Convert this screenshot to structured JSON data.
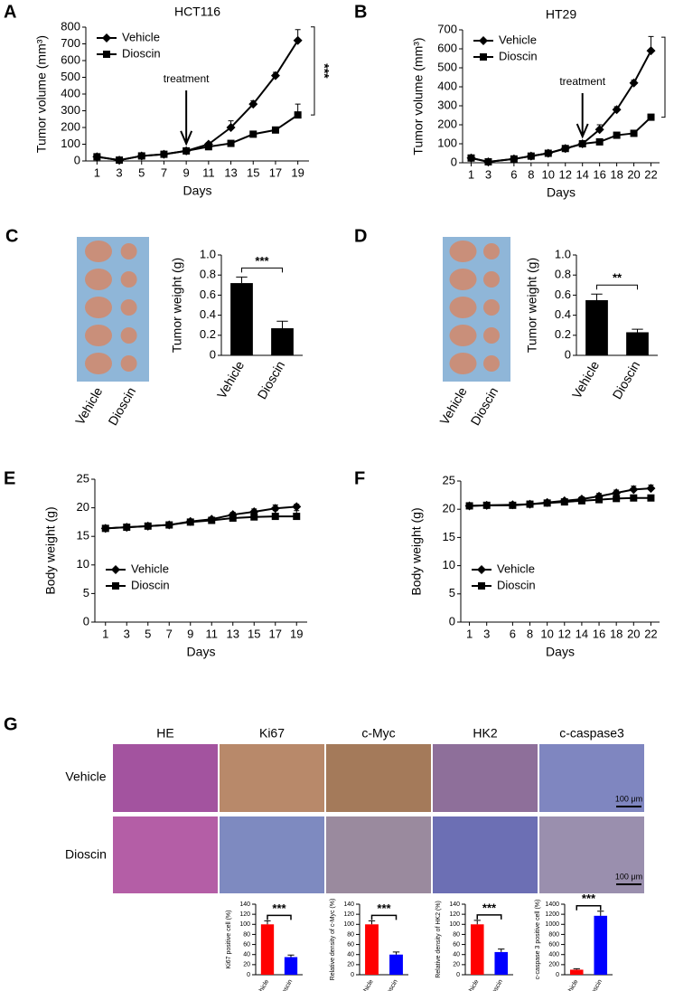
{
  "chart_data": [
    {
      "type": "line",
      "panel": "A",
      "title": "HCT116",
      "x": [
        1,
        3,
        5,
        7,
        9,
        11,
        13,
        15,
        17,
        19
      ],
      "xlim": [
        0,
        20
      ],
      "xticks": [
        1,
        3,
        5,
        7,
        9,
        11,
        13,
        15,
        17,
        19
      ],
      "ylim": [
        0,
        800
      ],
      "yticks": [
        0,
        100,
        200,
        300,
        400,
        500,
        600,
        700,
        800
      ],
      "xlabel": "Days",
      "ylabel": "Tumor volume (mm³)",
      "legend": "upper left",
      "series": [
        {
          "name": "Vehicle",
          "color": "#000000",
          "marker": "diamond",
          "values": [
            25,
            5,
            30,
            40,
            60,
            100,
            200,
            340,
            510,
            720
          ],
          "errors": [
            0,
            0,
            0,
            0,
            0,
            10,
            40,
            20,
            20,
            65
          ]
        },
        {
          "name": "Dioscin",
          "color": "#000000",
          "marker": "square",
          "values": [
            25,
            5,
            30,
            40,
            60,
            85,
            105,
            160,
            185,
            275
          ],
          "errors": [
            0,
            0,
            0,
            0,
            0,
            0,
            0,
            0,
            10,
            65
          ]
        }
      ],
      "annotation": {
        "text": "treatment",
        "x": 9
      },
      "significance": "***"
    },
    {
      "type": "line",
      "panel": "B",
      "title": "HT29",
      "x": [
        1,
        3,
        6,
        8,
        10,
        12,
        14,
        16,
        18,
        20,
        22
      ],
      "xlim": [
        0,
        23
      ],
      "xticks": [
        1,
        3,
        6,
        8,
        10,
        12,
        14,
        16,
        18,
        20,
        22
      ],
      "ylim": [
        0,
        700
      ],
      "yticks": [
        0,
        100,
        200,
        300,
        400,
        500,
        600,
        700
      ],
      "xlabel": "Days",
      "ylabel": "Tumor volume (mm³)",
      "legend": "upper left",
      "series": [
        {
          "name": "Vehicle",
          "color": "#000000",
          "marker": "diamond",
          "values": [
            25,
            5,
            20,
            35,
            50,
            75,
            100,
            175,
            280,
            420,
            590
          ],
          "errors": [
            0,
            0,
            0,
            0,
            0,
            0,
            0,
            25,
            15,
            15,
            75
          ]
        },
        {
          "name": "Dioscin",
          "color": "#000000",
          "marker": "square",
          "values": [
            25,
            5,
            20,
            35,
            50,
            75,
            100,
            110,
            145,
            155,
            240
          ],
          "errors": [
            0,
            0,
            0,
            0,
            0,
            0,
            0,
            0,
            0,
            0,
            10
          ]
        }
      ],
      "annotation": {
        "text": "treatment",
        "x": 14
      },
      "significance": "***"
    },
    {
      "type": "bar",
      "panel": "C",
      "categories": [
        "Vehicle",
        "Dioscin"
      ],
      "values": [
        0.72,
        0.27
      ],
      "errors": [
        0.06,
        0.07
      ],
      "color": "#000000",
      "ylim": [
        0,
        1
      ],
      "yticks": [
        0,
        0.2,
        0.4,
        0.6,
        0.8,
        {
          "value": 1,
          "label": "1.0"
        }
      ],
      "ylabel": "Tumor weight (g)",
      "significance": "***",
      "photo_labels": [
        "Vehicle",
        "Dioscin"
      ]
    },
    {
      "type": "bar",
      "panel": "D",
      "categories": [
        "Vehicle",
        "Dioscin"
      ],
      "values": [
        0.55,
        0.23
      ],
      "errors": [
        0.06,
        0.03
      ],
      "color": "#000000",
      "ylim": [
        0,
        1
      ],
      "yticks": [
        0,
        0.2,
        0.4,
        0.6,
        0.8,
        {
          "value": 1,
          "label": "1.0"
        }
      ],
      "ylabel": "Tumor weight (g)",
      "significance": "**",
      "photo_labels": [
        "Vehicle",
        "Dioscin"
      ]
    },
    {
      "type": "line",
      "panel": "E",
      "x": [
        1,
        3,
        5,
        7,
        9,
        11,
        13,
        15,
        17,
        19
      ],
      "xlim": [
        0,
        20
      ],
      "xticks": [
        1,
        3,
        5,
        7,
        9,
        11,
        13,
        15,
        17,
        19
      ],
      "ylim": [
        0,
        25
      ],
      "yticks": [
        0,
        5,
        10,
        15,
        20,
        25
      ],
      "xlabel": "Days",
      "ylabel": "Body weight (g)",
      "legend": "lower left",
      "series": [
        {
          "name": "Vehicle",
          "color": "#000000",
          "marker": "diamond",
          "values": [
            16.4,
            16.6,
            16.8,
            17.0,
            17.6,
            18.0,
            18.8,
            19.3,
            19.9,
            20.2
          ],
          "errors": [
            0,
            0,
            0,
            0,
            0.2,
            0.3,
            0.4,
            0.5,
            0.6,
            0.4
          ]
        },
        {
          "name": "Dioscin",
          "color": "#000000",
          "marker": "square",
          "values": [
            16.4,
            16.6,
            16.8,
            17.0,
            17.5,
            17.8,
            18.2,
            18.4,
            18.5,
            18.5
          ],
          "errors": [
            0,
            0,
            0,
            0,
            0.2,
            0.3,
            0.4,
            0.6,
            1.0,
            1.0
          ]
        }
      ]
    },
    {
      "type": "line",
      "panel": "F",
      "x": [
        1,
        3,
        6,
        8,
        10,
        12,
        14,
        16,
        18,
        20,
        22
      ],
      "xlim": [
        0,
        23
      ],
      "xticks": [
        1,
        3,
        6,
        8,
        10,
        12,
        14,
        16,
        18,
        20,
        22
      ],
      "ylim": [
        0,
        25
      ],
      "yticks": [
        0,
        5,
        10,
        15,
        20,
        25
      ],
      "xlabel": "Days",
      "ylabel": "Body weight (g)",
      "legend": "lower left",
      "series": [
        {
          "name": "Vehicle",
          "color": "#000000",
          "marker": "diamond",
          "values": [
            20.6,
            20.7,
            20.8,
            20.9,
            21.2,
            21.5,
            21.8,
            22.3,
            22.9,
            23.5,
            23.7
          ],
          "errors": [
            0,
            0,
            0,
            0,
            0.2,
            0.3,
            0.4,
            0.5,
            0.5,
            0.6,
            0.6
          ]
        },
        {
          "name": "Dioscin",
          "color": "#000000",
          "marker": "square",
          "values": [
            20.6,
            20.7,
            20.7,
            20.9,
            21.1,
            21.3,
            21.5,
            21.7,
            21.9,
            22.0,
            22.0
          ],
          "errors": [
            0,
            0,
            0,
            0,
            0.2,
            0.3,
            0.5,
            0.4,
            0.4,
            0.3,
            0.3
          ]
        }
      ]
    },
    {
      "type": "bar",
      "categories": [
        "Vehicle",
        "Dioscin"
      ],
      "values": [
        100,
        35
      ],
      "errors": [
        7,
        4
      ],
      "colors": [
        "#ff0000",
        "#0000ff"
      ],
      "ylim": [
        0,
        140
      ],
      "yticks": [
        0,
        20,
        40,
        60,
        80,
        100,
        120,
        140
      ],
      "ylabel": "Ki67 positive cell (%)",
      "significance": "***"
    },
    {
      "type": "bar",
      "categories": [
        "Vehicle",
        "Dioscin"
      ],
      "values": [
        100,
        40
      ],
      "errors": [
        7,
        5
      ],
      "colors": [
        "#ff0000",
        "#0000ff"
      ],
      "ylim": [
        0,
        140
      ],
      "yticks": [
        0,
        20,
        40,
        60,
        80,
        100,
        120,
        140
      ],
      "ylabel": "Relative density of c-Myc (%)",
      "significance": "***"
    },
    {
      "type": "bar",
      "categories": [
        "Vehicle",
        "Dioscin"
      ],
      "values": [
        100,
        45
      ],
      "errors": [
        8,
        6
      ],
      "colors": [
        "#ff0000",
        "#0000ff"
      ],
      "ylim": [
        0,
        140
      ],
      "yticks": [
        0,
        20,
        40,
        60,
        80,
        100,
        120,
        140
      ],
      "ylabel": "Relative density of HK2 (%)",
      "significance": "***"
    },
    {
      "type": "bar",
      "categories": [
        "Vehicle",
        "Dioscin"
      ],
      "values": [
        100,
        1170
      ],
      "errors": [
        20,
        90
      ],
      "colors": [
        "#ff0000",
        "#0000ff"
      ],
      "ylim": [
        0,
        1400
      ],
      "yticks": [
        0,
        200,
        400,
        600,
        800,
        1000,
        1200,
        1400
      ],
      "ylabel": "c-caspase 3 positive cell (%)",
      "significance": "***"
    }
  ],
  "panel_g": {
    "panel": "G",
    "columns": [
      "HE",
      "Ki67",
      "c-Myc",
      "HK2",
      "c-caspase3"
    ],
    "rows": [
      "Vehicle",
      "Dioscin"
    ],
    "scale_bars": [
      "100 μm",
      "100 μm"
    ]
  }
}
